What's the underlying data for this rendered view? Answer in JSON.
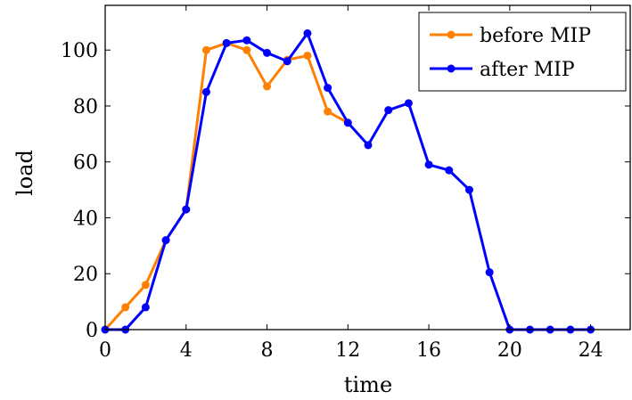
{
  "chart_data": {
    "type": "line",
    "xlabel": "time",
    "ylabel": "load",
    "xlim": [
      0,
      26
    ],
    "ylim": [
      0,
      116
    ],
    "xticks": [
      0,
      4,
      8,
      12,
      16,
      20,
      24
    ],
    "yticks": [
      0,
      20,
      40,
      60,
      80,
      100
    ],
    "grid": false,
    "legend_position": "top-right",
    "series": [
      {
        "name": "before MIP",
        "color": "#ff8000",
        "x": [
          0,
          1,
          2,
          3,
          4,
          5,
          6,
          7,
          8,
          9,
          10,
          11,
          12
        ],
        "y": [
          0,
          8,
          16,
          32,
          43,
          100,
          102.5,
          100,
          87,
          96.5,
          98,
          78,
          74
        ]
      },
      {
        "name": "after MIP",
        "color": "#0000ff",
        "x": [
          0,
          1,
          2,
          3,
          4,
          5,
          6,
          7,
          8,
          9,
          10,
          11,
          12,
          13,
          14,
          15,
          16,
          17,
          18,
          19,
          20,
          21,
          22,
          23,
          24
        ],
        "y": [
          0,
          0,
          8,
          32,
          43,
          85,
          102.5,
          103.5,
          99,
          96,
          106,
          86.5,
          74,
          66,
          78.5,
          81,
          59,
          57,
          50,
          20.5,
          0,
          0,
          0,
          0,
          0
        ]
      }
    ]
  }
}
